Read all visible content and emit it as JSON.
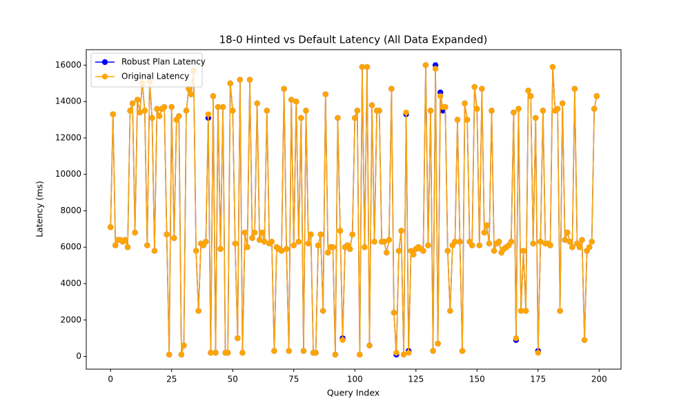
{
  "chart_data": {
    "type": "line",
    "title": "18-0 Hinted vs Default Latency (All Data Expanded)",
    "x_label": "Query Index",
    "y_label": "Latency (ms)",
    "x": [
      0,
      1,
      2,
      3,
      4,
      5,
      6,
      7,
      8,
      9,
      10,
      11,
      12,
      13,
      14,
      15,
      16,
      17,
      18,
      19,
      20,
      21,
      22,
      23,
      24,
      25,
      26,
      27,
      28,
      29,
      30,
      31,
      32,
      33,
      34,
      35,
      36,
      37,
      38,
      39,
      40,
      41,
      42,
      43,
      44,
      45,
      46,
      47,
      48,
      49,
      50,
      51,
      52,
      53,
      54,
      55,
      56,
      57,
      58,
      59,
      60,
      61,
      62,
      63,
      64,
      65,
      66,
      67,
      68,
      69,
      70,
      71,
      72,
      73,
      74,
      75,
      76,
      77,
      78,
      79,
      80,
      81,
      82,
      83,
      84,
      85,
      86,
      87,
      88,
      89,
      90,
      91,
      92,
      93,
      94,
      95,
      96,
      97,
      98,
      99,
      100,
      101,
      102,
      103,
      104,
      105,
      106,
      107,
      108,
      109,
      110,
      111,
      112,
      113,
      114,
      115,
      116,
      117,
      118,
      119,
      120,
      121,
      122,
      123,
      124,
      125,
      126,
      127,
      128,
      129,
      130,
      131,
      132,
      133,
      134,
      135,
      136,
      137,
      138,
      139,
      140,
      141,
      142,
      143,
      144,
      145,
      146,
      147,
      148,
      149,
      150,
      151,
      152,
      153,
      154,
      155,
      156,
      157,
      158,
      159,
      160,
      161,
      162,
      163,
      164,
      165,
      166,
      167,
      168,
      169,
      170,
      171,
      172,
      173,
      174,
      175,
      176,
      177,
      178,
      179,
      180,
      181,
      182,
      183,
      184,
      185,
      186,
      187,
      188,
      189,
      190,
      191,
      192,
      193,
      194,
      195,
      196,
      197,
      198,
      199
    ],
    "series": [
      {
        "name": "Robust Plan Latency",
        "color": "#0000ff",
        "values": [
          7100,
          13300,
          6100,
          6400,
          6400,
          6300,
          6400,
          6000,
          13500,
          13900,
          6800,
          14100,
          13400,
          15000,
          13500,
          6100,
          15100,
          13100,
          5800,
          13600,
          13200,
          13600,
          13700,
          6700,
          100,
          13700,
          6500,
          13000,
          13200,
          100,
          600,
          13500,
          14700,
          14400,
          15700,
          5800,
          2500,
          6200,
          6100,
          6300,
          13100,
          200,
          14300,
          200,
          13700,
          5900,
          13700,
          200,
          200,
          15000,
          13500,
          6200,
          1000,
          15200,
          200,
          6800,
          6000,
          15200,
          6500,
          6800,
          13900,
          6400,
          6800,
          6300,
          13500,
          6200,
          6300,
          300,
          6000,
          5900,
          5800,
          14700,
          5900,
          300,
          14100,
          6100,
          14000,
          6300,
          13100,
          300,
          13500,
          6200,
          6700,
          200,
          200,
          6100,
          6700,
          2500,
          14400,
          5700,
          6000,
          6000,
          100,
          13100,
          6900,
          1000,
          6000,
          6100,
          5900,
          6700,
          13100,
          13500,
          100,
          15900,
          6000,
          15900,
          600,
          13800,
          6300,
          13500,
          13500,
          6300,
          6300,
          5700,
          6400,
          14700,
          2400,
          100,
          5800,
          6900,
          100,
          13300,
          300,
          5800,
          5600,
          5900,
          6000,
          5900,
          5800,
          16000,
          6100,
          13500,
          300,
          16000,
          700,
          14500,
          13500,
          13700,
          5800,
          2500,
          6100,
          6300,
          13000,
          6300,
          300,
          13900,
          13000,
          6300,
          6100,
          14800,
          13600,
          6100,
          14700,
          6800,
          7200,
          6200,
          13500,
          5800,
          6200,
          6300,
          5700,
          5900,
          6000,
          6100,
          6300,
          13400,
          900,
          13600,
          2500,
          5800,
          2500,
          14600,
          14300,
          6200,
          13100,
          300,
          6300,
          13500,
          6200,
          6200,
          6100,
          15900,
          13500,
          13600,
          2500,
          13900,
          6400,
          6800,
          6300,
          6000,
          14700,
          6200,
          6000,
          6400,
          900,
          5800,
          6000,
          6300,
          13600,
          14300
        ]
      },
      {
        "name": "Original Latency",
        "color": "#ffa500",
        "values": [
          7100,
          13300,
          6100,
          6400,
          6400,
          6300,
          6400,
          6000,
          13500,
          13900,
          6800,
          14100,
          13400,
          15000,
          13500,
          6100,
          15100,
          13100,
          5800,
          13600,
          13200,
          13600,
          13700,
          6700,
          100,
          13700,
          6500,
          13000,
          13200,
          100,
          600,
          13500,
          14700,
          14400,
          15700,
          5800,
          2500,
          6200,
          6100,
          6300,
          13300,
          200,
          14300,
          200,
          13700,
          5900,
          13700,
          200,
          200,
          15000,
          13500,
          6200,
          1000,
          15200,
          200,
          6800,
          6000,
          15200,
          6500,
          6800,
          13900,
          6400,
          6800,
          6300,
          13500,
          6200,
          6300,
          300,
          6000,
          5900,
          5800,
          14700,
          5900,
          300,
          14100,
          6100,
          14000,
          6300,
          13100,
          300,
          13500,
          6200,
          6700,
          200,
          200,
          6100,
          6700,
          2500,
          14400,
          5700,
          6000,
          6000,
          100,
          13100,
          6900,
          900,
          6000,
          6100,
          5900,
          6700,
          13100,
          13500,
          100,
          15900,
          6000,
          15900,
          600,
          13800,
          6300,
          13500,
          13500,
          6300,
          6300,
          5700,
          6400,
          14700,
          2400,
          200,
          5800,
          6900,
          100,
          13400,
          200,
          5800,
          5600,
          5900,
          6000,
          5900,
          5800,
          16000,
          6100,
          13500,
          300,
          15800,
          700,
          14300,
          13700,
          13700,
          5800,
          2500,
          6100,
          6300,
          13000,
          6300,
          300,
          13900,
          13000,
          6300,
          6100,
          14800,
          13600,
          6100,
          14700,
          6800,
          7200,
          6200,
          13500,
          5800,
          6200,
          6300,
          5700,
          5900,
          6000,
          6100,
          6300,
          13400,
          1000,
          13600,
          2500,
          5800,
          2500,
          14600,
          14300,
          6200,
          13100,
          200,
          6300,
          13500,
          6200,
          6200,
          6100,
          15900,
          13500,
          13600,
          2500,
          13900,
          6400,
          6800,
          6300,
          6000,
          14700,
          6200,
          6000,
          6400,
          900,
          5800,
          6000,
          6300,
          13600,
          14300
        ]
      }
    ],
    "xlim": [
      -9.95,
      208.95
    ],
    "ylim": [
      -700,
      16850
    ],
    "xticks": [
      0,
      25,
      50,
      75,
      100,
      125,
      150,
      175,
      200
    ],
    "yticks": [
      0,
      2000,
      4000,
      6000,
      8000,
      10000,
      12000,
      14000,
      16000
    ],
    "grid": false,
    "legend": "upper left"
  }
}
